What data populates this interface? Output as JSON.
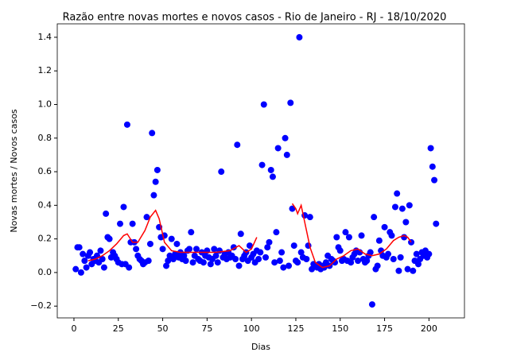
{
  "chart_data": {
    "type": "scatter",
    "title": "Razão entre novas mortes e novos casos - Rio de Janeiro - RJ - 18/10/2020",
    "xlabel": "Dias",
    "ylabel": "Novas mortes / Novos casos",
    "xlim": [
      -9.4,
      220
    ],
    "ylim": [
      -0.27,
      1.48
    ],
    "xticks": [
      0,
      25,
      50,
      75,
      100,
      125,
      150,
      175,
      200
    ],
    "yticks": [
      {
        "value": -0.2,
        "label": "−0.2"
      },
      {
        "value": 0,
        "label": "0.0"
      },
      {
        "value": 0.2,
        "label": "0.2"
      },
      {
        "value": 0.4,
        "label": "0.4"
      },
      {
        "value": 0.6,
        "label": "0.6"
      },
      {
        "value": 0.8,
        "label": "0.8"
      },
      {
        "value": 1,
        "label": "1.0"
      },
      {
        "value": 1.2,
        "label": "1.2"
      },
      {
        "value": 1.4,
        "label": "1.4"
      }
    ],
    "series": [
      {
        "type": "scatter",
        "color": "#0000ff",
        "x": [
          1,
          2,
          3,
          4,
          5,
          6,
          7,
          8,
          9,
          10,
          11,
          12,
          13,
          14,
          15,
          16,
          17,
          18,
          19,
          20,
          21,
          22,
          23,
          24,
          25,
          26,
          27,
          28,
          29,
          30,
          31,
          32,
          33,
          34,
          35,
          36,
          37,
          38,
          39,
          40,
          41,
          42,
          43,
          44,
          45,
          46,
          47,
          48,
          49,
          50,
          51,
          52,
          53,
          54,
          55,
          56,
          57,
          58,
          59,
          60,
          61,
          62,
          63,
          64,
          65,
          66,
          67,
          68,
          69,
          70,
          71,
          72,
          73,
          74,
          75,
          76,
          77,
          78,
          79,
          80,
          81,
          82,
          83,
          84,
          85,
          86,
          87,
          88,
          89,
          90,
          91,
          92,
          93,
          94,
          95,
          96,
          97,
          98,
          99,
          100,
          101,
          102,
          103,
          104,
          105,
          106,
          107,
          108,
          109,
          110,
          111,
          112,
          113,
          114,
          115,
          116,
          117,
          118,
          119,
          120,
          121,
          122,
          123,
          124,
          125,
          126,
          127,
          128,
          129,
          130,
          131,
          132,
          133,
          134,
          135,
          136,
          137,
          138,
          139,
          140,
          141,
          142,
          143,
          144,
          145,
          146,
          147,
          148,
          149,
          150,
          151,
          152,
          153,
          154,
          155,
          156,
          157,
          158,
          159,
          160,
          161,
          162,
          163,
          164,
          165,
          166,
          167,
          168,
          169,
          170,
          171,
          172,
          173,
          174,
          175,
          176,
          177,
          178,
          179,
          180,
          181,
          182,
          183,
          184,
          185,
          186,
          187,
          188,
          189,
          190,
          191,
          192,
          193,
          194,
          195,
          196,
          197,
          198,
          199,
          200,
          201,
          202,
          203,
          204
        ],
        "values": [
          0.02,
          0.15,
          0.15,
          0.0,
          0.11,
          0.07,
          0.03,
          0.1,
          0.12,
          0.05,
          0.08,
          0.07,
          0.1,
          0.06,
          0.13,
          0.08,
          0.03,
          0.35,
          0.21,
          0.2,
          0.09,
          0.12,
          0.1,
          0.08,
          0.06,
          0.29,
          0.05,
          0.39,
          0.05,
          0.88,
          0.03,
          0.18,
          0.29,
          0.18,
          0.14,
          0.1,
          0.08,
          0.07,
          0.05,
          0.06,
          0.33,
          0.07,
          0.17,
          0.83,
          0.46,
          0.54,
          0.61,
          0.27,
          0.21,
          0.14,
          0.22,
          0.04,
          0.07,
          0.1,
          0.2,
          0.08,
          0.11,
          0.17,
          0.09,
          0.12,
          0.08,
          0.1,
          0.07,
          0.13,
          0.14,
          0.24,
          0.06,
          0.1,
          0.14,
          0.08,
          0.07,
          0.12,
          0.06,
          0.1,
          0.13,
          0.09,
          0.05,
          0.08,
          0.14,
          0.1,
          0.06,
          0.13,
          0.6,
          0.09,
          0.11,
          0.08,
          0.12,
          0.09,
          0.1,
          0.15,
          0.08,
          0.76,
          0.04,
          0.23,
          0.08,
          0.1,
          0.12,
          0.07,
          0.16,
          0.09,
          0.11,
          0.06,
          0.13,
          0.08,
          0.12,
          0.64,
          1.0,
          0.09,
          0.15,
          0.18,
          0.61,
          0.57,
          0.06,
          0.24,
          0.74,
          0.07,
          0.12,
          0.03,
          0.8,
          0.7,
          0.04,
          1.01,
          0.38,
          0.16,
          0.07,
          0.06,
          1.4,
          0.12,
          0.09,
          0.34,
          0.08,
          0.16,
          0.33,
          0.02,
          0.05,
          0.04,
          0.03,
          0.05,
          0.02,
          0.04,
          0.03,
          0.06,
          0.1,
          0.04,
          0.08,
          0.07,
          0.06,
          0.21,
          0.15,
          0.13,
          0.07,
          0.08,
          0.24,
          0.07,
          0.21,
          0.06,
          0.09,
          0.11,
          0.13,
          0.07,
          0.12,
          0.22,
          0.08,
          0.06,
          0.07,
          0.1,
          0.12,
          -0.19,
          0.33,
          0.02,
          0.04,
          0.19,
          0.13,
          0.1,
          0.27,
          0.09,
          0.11,
          0.24,
          0.22,
          0.08,
          0.39,
          0.47,
          0.01,
          0.09,
          0.38,
          0.21,
          0.3,
          0.02,
          0.4,
          0.18,
          0.01,
          0.07,
          0.11,
          0.05,
          0.08,
          0.12,
          0.1,
          0.13,
          0.09,
          0.11,
          0.74,
          0.63,
          0.55,
          0.29
        ]
      },
      {
        "type": "line",
        "color": "#ff0000",
        "x": [
          8,
          12,
          16,
          20,
          24,
          28,
          30,
          33,
          36,
          40,
          43,
          46,
          48,
          51,
          55,
          60,
          70,
          80,
          88,
          93,
          97,
          100,
          103,
          106,
          123,
          125,
          126,
          128,
          130,
          133,
          136,
          140,
          144,
          148,
          152,
          156,
          160,
          164,
          168,
          172,
          176,
          180,
          183,
          186,
          188,
          190
        ],
        "values": [
          0.07,
          0.08,
          0.1,
          0.13,
          0.17,
          0.22,
          0.23,
          0.18,
          0.18,
          0.25,
          0.33,
          0.37,
          0.32,
          0.18,
          0.13,
          0.12,
          0.12,
          0.12,
          0.13,
          0.16,
          0.12,
          0.14,
          0.21,
          null,
          0.41,
          0.38,
          0.35,
          0.4,
          0.3,
          0.15,
          0.06,
          0.03,
          0.04,
          0.08,
          0.1,
          0.13,
          0.14,
          0.11,
          0.1,
          0.11,
          0.14,
          0.19,
          0.21,
          0.22,
          0.21,
          0.18
        ]
      }
    ]
  }
}
